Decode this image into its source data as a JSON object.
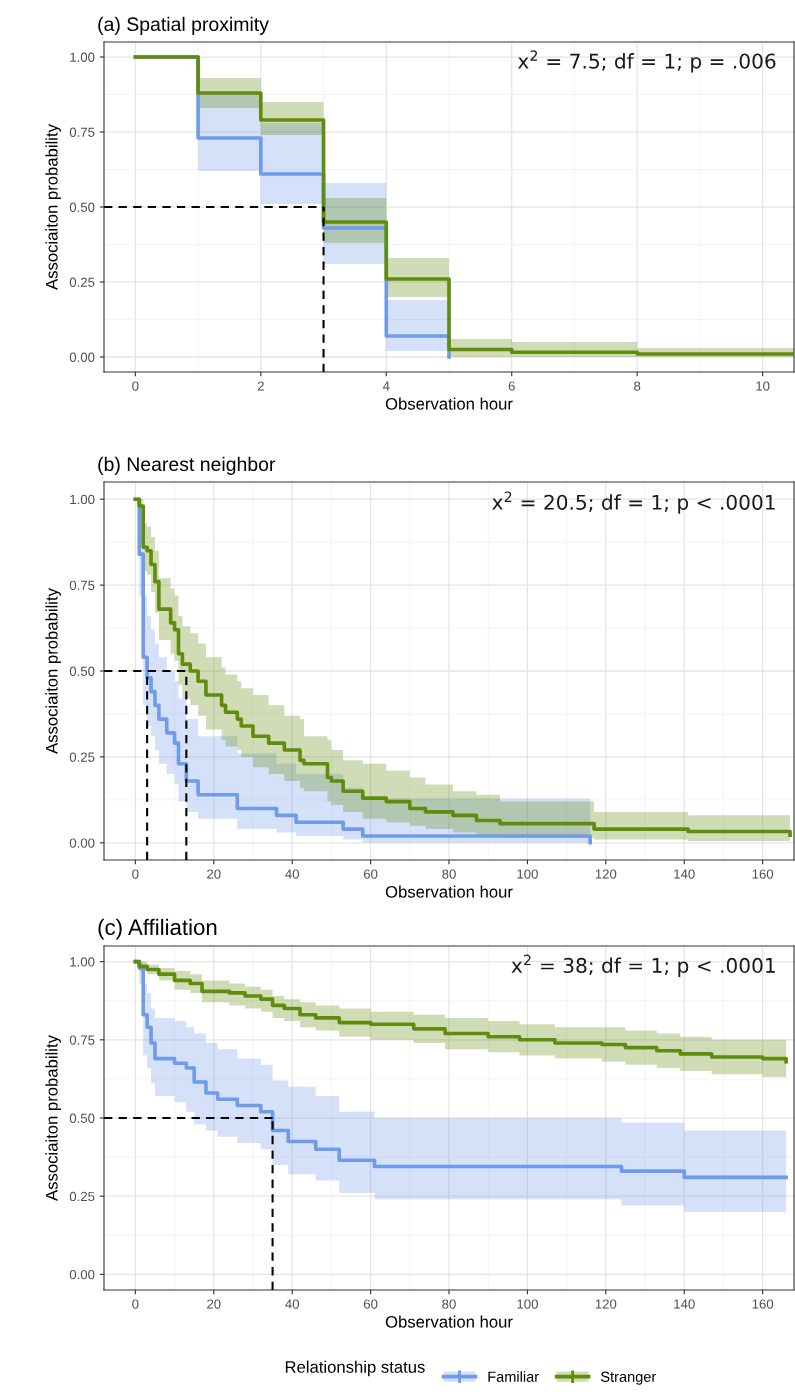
{
  "chart_data": [
    {
      "type": "step",
      "title": "(a) Spatial proximity",
      "xlabel": "Observation hour",
      "ylabel": "Associaiton probability",
      "annotations": [
        "x$^{2}$ = 7.5; df = 1; p = .006"
      ],
      "xlim": [
        -0.5,
        10.5
      ],
      "xticks": [
        0,
        2,
        4,
        6,
        8,
        10
      ],
      "ylim": [
        -0.05,
        1.05
      ],
      "yticks": [
        {
          "value": 0,
          "label": "0.00"
        },
        {
          "value": 0.25,
          "label": "0.25"
        },
        {
          "value": 0.5,
          "label": "0.50"
        },
        {
          "value": 0.75,
          "label": "0.75"
        },
        {
          "value": 1,
          "label": "1.00"
        }
      ],
      "grid": true,
      "ref_lines": [
        {
          "axis": "y",
          "value": 0.5,
          "color": "#000000",
          "line_style": "dashed"
        },
        {
          "axis": "x",
          "value": 3,
          "color": "#000000",
          "line_style": "dashed"
        }
      ],
      "series": [
        {
          "color": "#6f9be8",
          "x": [
            0,
            1,
            2,
            3,
            4,
            5
          ],
          "values": [
            1.0,
            0.73,
            0.61,
            0.43,
            0.07,
            0.0
          ],
          "lower": [
            1.0,
            0.62,
            0.51,
            0.31,
            0.02,
            0.0
          ],
          "upper": [
            1.0,
            0.88,
            0.78,
            0.58,
            0.19,
            0.0
          ]
        },
        {
          "color": "#5f8c0d",
          "x": [
            0,
            1,
            2,
            3,
            4,
            5,
            6,
            8,
            10.5
          ],
          "values": [
            1.0,
            0.88,
            0.79,
            0.45,
            0.26,
            0.025,
            0.016,
            0.01,
            0.01
          ],
          "lower": [
            1.0,
            0.83,
            0.74,
            0.38,
            0.2,
            0.0,
            0.0,
            0.0,
            0.0
          ],
          "upper": [
            1.0,
            0.93,
            0.85,
            0.53,
            0.33,
            0.06,
            0.05,
            0.03,
            0.03
          ]
        }
      ]
    },
    {
      "type": "step",
      "title": "(b) Nearest neighbor",
      "xlabel": "Observation hour",
      "ylabel": "Associaiton probability",
      "annotations": [
        "x$^{2}$ = 20.5; df = 1; p < .0001"
      ],
      "xlim": [
        -8,
        168
      ],
      "xticks": [
        0,
        20,
        40,
        60,
        80,
        100,
        120,
        140,
        160
      ],
      "ylim": [
        -0.05,
        1.05
      ],
      "yticks": [
        {
          "value": 0,
          "label": "0.00"
        },
        {
          "value": 0.25,
          "label": "0.25"
        },
        {
          "value": 0.5,
          "label": "0.50"
        },
        {
          "value": 0.75,
          "label": "0.75"
        },
        {
          "value": 1,
          "label": "1.00"
        }
      ],
      "grid": true,
      "ref_lines": [
        {
          "axis": "y",
          "value": 0.5,
          "color": "#000000",
          "line_style": "dashed"
        },
        {
          "axis": "x",
          "value": 3,
          "color": "#000000",
          "line_style": "dashed"
        },
        {
          "axis": "x",
          "value": 13,
          "color": "#000000",
          "line_style": "dashed"
        }
      ],
      "series": [
        {
          "color": "#6f9be8",
          "x": [
            0,
            1,
            2,
            3,
            4,
            5,
            6,
            8,
            10,
            11,
            13,
            16,
            26,
            36,
            41,
            53,
            58,
            116
          ],
          "values": [
            1.0,
            0.84,
            0.54,
            0.48,
            0.44,
            0.4,
            0.36,
            0.32,
            0.29,
            0.23,
            0.18,
            0.14,
            0.1,
            0.08,
            0.06,
            0.04,
            0.02,
            0.0
          ],
          "lower": [
            1.0,
            0.72,
            0.4,
            0.34,
            0.31,
            0.27,
            0.23,
            0.2,
            0.17,
            0.12,
            0.09,
            0.07,
            0.04,
            0.03,
            0.02,
            0.01,
            0.0,
            0.0
          ],
          "upper": [
            1.0,
            0.97,
            0.72,
            0.66,
            0.62,
            0.58,
            0.54,
            0.5,
            0.47,
            0.42,
            0.36,
            0.31,
            0.26,
            0.23,
            0.2,
            0.16,
            0.13,
            0.13
          ]
        },
        {
          "color": "#5f8c0d",
          "x": [
            0,
            1,
            2,
            3,
            4,
            5,
            6,
            9,
            10,
            11,
            12,
            14,
            16,
            18,
            22,
            23,
            26,
            27,
            30,
            34,
            38,
            42,
            43,
            49,
            50,
            53,
            58,
            64,
            70,
            74,
            81,
            87,
            93,
            117,
            141,
            167
          ],
          "values": [
            1.0,
            0.98,
            0.86,
            0.85,
            0.81,
            0.76,
            0.68,
            0.64,
            0.62,
            0.55,
            0.52,
            0.5,
            0.47,
            0.43,
            0.4,
            0.38,
            0.36,
            0.34,
            0.31,
            0.29,
            0.27,
            0.24,
            0.23,
            0.19,
            0.18,
            0.15,
            0.13,
            0.12,
            0.1,
            0.09,
            0.08,
            0.065,
            0.056,
            0.04,
            0.033,
            0.022
          ],
          "lower": [
            1.0,
            0.95,
            0.79,
            0.78,
            0.73,
            0.67,
            0.59,
            0.55,
            0.53,
            0.46,
            0.42,
            0.4,
            0.37,
            0.33,
            0.3,
            0.28,
            0.27,
            0.25,
            0.22,
            0.2,
            0.18,
            0.16,
            0.15,
            0.12,
            0.11,
            0.09,
            0.07,
            0.06,
            0.05,
            0.04,
            0.03,
            0.02,
            0.015,
            0.01,
            0.005,
            0.0
          ],
          "upper": [
            1.0,
            1.0,
            0.93,
            0.92,
            0.89,
            0.85,
            0.77,
            0.74,
            0.72,
            0.66,
            0.63,
            0.61,
            0.58,
            0.54,
            0.51,
            0.49,
            0.47,
            0.45,
            0.43,
            0.4,
            0.37,
            0.36,
            0.31,
            0.3,
            0.27,
            0.24,
            0.23,
            0.21,
            0.19,
            0.17,
            0.15,
            0.14,
            0.12,
            0.09,
            0.08,
            0.07
          ]
        }
      ]
    },
    {
      "type": "step",
      "title": "(c) Affiliation",
      "xlabel": "Observation hour",
      "ylabel": "Associaiton probability",
      "annotations": [
        "x$^{2}$ = 38; df = 1; p < .0001"
      ],
      "xlim": [
        -8,
        168
      ],
      "xticks": [
        0,
        20,
        40,
        60,
        80,
        100,
        120,
        140,
        160
      ],
      "ylim": [
        -0.05,
        1.05
      ],
      "yticks": [
        {
          "value": 0,
          "label": "0.00"
        },
        {
          "value": 0.25,
          "label": "0.25"
        },
        {
          "value": 0.5,
          "label": "0.50"
        },
        {
          "value": 0.75,
          "label": "0.75"
        },
        {
          "value": 1,
          "label": "1.00"
        }
      ],
      "grid": true,
      "legend": "bottom",
      "legend_title": "Relationship status",
      "ref_lines": [
        {
          "axis": "y",
          "value": 0.5,
          "color": "#000000",
          "line_style": "dashed"
        },
        {
          "axis": "x",
          "value": 35,
          "color": "#000000",
          "line_style": "dashed"
        }
      ],
      "series": [
        {
          "name": "Familiar",
          "color": "#6f9be8",
          "x": [
            0,
            1,
            2,
            3,
            4,
            5,
            10,
            13,
            15,
            18,
            21,
            26,
            32,
            35,
            39,
            46,
            52,
            61,
            124,
            140,
            166
          ],
          "values": [
            1.0,
            0.98,
            0.83,
            0.79,
            0.74,
            0.69,
            0.675,
            0.66,
            0.615,
            0.58,
            0.56,
            0.54,
            0.52,
            0.46,
            0.425,
            0.4,
            0.365,
            0.345,
            0.33,
            0.31,
            0.31
          ],
          "lower": [
            1.0,
            0.93,
            0.7,
            0.66,
            0.61,
            0.57,
            0.55,
            0.52,
            0.48,
            0.46,
            0.44,
            0.42,
            0.4,
            0.35,
            0.32,
            0.3,
            0.26,
            0.24,
            0.22,
            0.2,
            0.2
          ],
          "upper": [
            1.0,
            1.0,
            0.93,
            0.9,
            0.85,
            0.82,
            0.81,
            0.79,
            0.77,
            0.74,
            0.72,
            0.69,
            0.67,
            0.62,
            0.6,
            0.57,
            0.52,
            0.5,
            0.485,
            0.46,
            0.46
          ]
        },
        {
          "name": "Stranger",
          "color": "#5f8c0d",
          "x": [
            0,
            1,
            3,
            6,
            10,
            14,
            17,
            24,
            28,
            32,
            35,
            38,
            42,
            46,
            52,
            60,
            71,
            79,
            90,
            98,
            107,
            119,
            125,
            133,
            139,
            147,
            160,
            166
          ],
          "values": [
            1.0,
            0.985,
            0.975,
            0.96,
            0.94,
            0.93,
            0.905,
            0.9,
            0.89,
            0.88,
            0.86,
            0.85,
            0.83,
            0.82,
            0.805,
            0.8,
            0.785,
            0.77,
            0.76,
            0.75,
            0.74,
            0.735,
            0.725,
            0.715,
            0.705,
            0.695,
            0.69,
            0.68
          ],
          "lower": [
            1.0,
            0.97,
            0.96,
            0.94,
            0.91,
            0.9,
            0.87,
            0.86,
            0.85,
            0.84,
            0.82,
            0.81,
            0.79,
            0.78,
            0.76,
            0.75,
            0.74,
            0.72,
            0.71,
            0.7,
            0.69,
            0.68,
            0.67,
            0.66,
            0.65,
            0.64,
            0.63,
            0.62
          ],
          "upper": [
            1.0,
            1.0,
            0.99,
            0.98,
            0.97,
            0.96,
            0.94,
            0.93,
            0.92,
            0.91,
            0.89,
            0.88,
            0.87,
            0.86,
            0.85,
            0.84,
            0.83,
            0.82,
            0.81,
            0.8,
            0.79,
            0.79,
            0.78,
            0.77,
            0.76,
            0.75,
            0.75,
            0.74
          ]
        }
      ]
    }
  ]
}
